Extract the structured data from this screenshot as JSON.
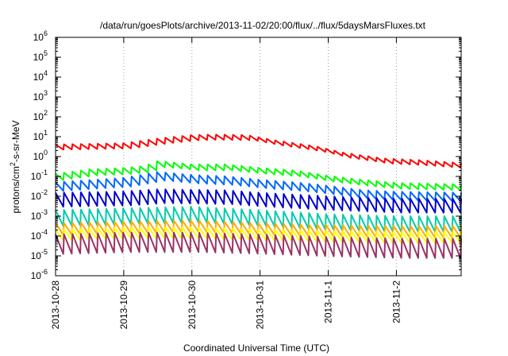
{
  "chart_data": {
    "type": "line",
    "title": "/data/run/goesPlots/archive/2013-11-02/20:00/flux/../flux/5daysMarsFluxes.txt",
    "xlabel": "Coordinated Universal Time (UTC)",
    "ylabel": {
      "base": "protons/cm",
      "sup": "2",
      "rest": "-s-sr-MeV"
    },
    "yscale": "log",
    "ylim": [
      1e-06,
      1000000.0
    ],
    "y_ticks": [
      {
        "value": 1e-06,
        "exp": "-6"
      },
      {
        "value": 1e-05,
        "exp": "-5"
      },
      {
        "value": 0.0001,
        "exp": "-4"
      },
      {
        "value": 0.001,
        "exp": "-3"
      },
      {
        "value": 0.01,
        "exp": "-2"
      },
      {
        "value": 0.1,
        "exp": "-1"
      },
      {
        "value": 1,
        "exp": "0"
      },
      {
        "value": 10,
        "exp": "1"
      },
      {
        "value": 100,
        "exp": "2"
      },
      {
        "value": 1000,
        "exp": "3"
      },
      {
        "value": 10000,
        "exp": "4"
      },
      {
        "value": 100000,
        "exp": "5"
      },
      {
        "value": 1000000,
        "exp": "6"
      }
    ],
    "x_ticks": [
      "2013-10-28",
      "2013-10-29",
      "2013-10-30",
      "2013-10-31",
      "2013-11-1",
      "2013-11-2"
    ],
    "xlim_days": [
      0,
      5.95
    ],
    "grid": "vertical-dotted",
    "legend": "none",
    "cycles": 48,
    "series": [
      {
        "color": "#ff0000",
        "levels": [
          [
            0,
            3.0
          ],
          [
            1.0,
            3.5
          ],
          [
            1.5,
            6.0
          ],
          [
            2.0,
            9.0
          ],
          [
            2.3,
            9.5
          ],
          [
            2.8,
            9.0
          ],
          [
            3.2,
            5.0
          ],
          [
            3.8,
            2.5
          ],
          [
            4.2,
            1.2
          ],
          [
            4.8,
            0.6
          ],
          [
            5.3,
            0.5
          ],
          [
            5.95,
            0.35
          ]
        ],
        "amp": 1.35,
        "dip_amp": 1.35
      },
      {
        "color": "#00ff00",
        "levels": [
          [
            0,
            0.1
          ],
          [
            0.5,
            0.17
          ],
          [
            1.0,
            0.2
          ],
          [
            1.3,
            0.25
          ],
          [
            1.5,
            0.45
          ],
          [
            2.0,
            0.3
          ],
          [
            2.5,
            0.3
          ],
          [
            3.0,
            0.2
          ],
          [
            3.5,
            0.15
          ],
          [
            4.0,
            0.08
          ],
          [
            4.5,
            0.05
          ],
          [
            5.0,
            0.035
          ],
          [
            5.95,
            0.03
          ]
        ],
        "amp": 1.35,
        "dip_amp": 1.5
      },
      {
        "color": "#0066ff",
        "levels": [
          [
            0,
            0.03
          ],
          [
            1.0,
            0.05
          ],
          [
            1.5,
            0.1
          ],
          [
            2.0,
            0.07
          ],
          [
            2.5,
            0.06
          ],
          [
            3.0,
            0.04
          ],
          [
            3.5,
            0.03
          ],
          [
            4.0,
            0.02
          ],
          [
            4.5,
            0.012
          ],
          [
            5.0,
            0.01
          ],
          [
            5.95,
            0.009
          ]
        ],
        "amp": 1.7,
        "dip_amp": 1.6
      },
      {
        "color": "#0000cc",
        "levels": [
          [
            0,
            0.006
          ],
          [
            1.0,
            0.007
          ],
          [
            1.5,
            0.009
          ],
          [
            2.5,
            0.008
          ],
          [
            3.0,
            0.006
          ],
          [
            4.0,
            0.004
          ],
          [
            5.0,
            0.003
          ],
          [
            5.95,
            0.003
          ]
        ],
        "amp": 2.5,
        "dip_amp": 2.0
      },
      {
        "color": "#00ccaa",
        "levels": [
          [
            0,
            0.0008
          ],
          [
            1.0,
            0.001
          ],
          [
            2.0,
            0.0012
          ],
          [
            3.0,
            0.0008
          ],
          [
            4.0,
            0.0005
          ],
          [
            5.0,
            0.0004
          ],
          [
            5.95,
            0.0004
          ]
        ],
        "amp": 2.5,
        "dip_amp": 2.5
      },
      {
        "color": "#ffaa00",
        "levels": [
          [
            0,
            0.00025
          ],
          [
            1.0,
            0.0003
          ],
          [
            2.0,
            0.00035
          ],
          [
            3.0,
            0.00025
          ],
          [
            4.0,
            0.0002
          ],
          [
            5.0,
            0.00018
          ],
          [
            5.95,
            0.00018
          ]
        ],
        "amp": 1.8,
        "dip_amp": 2.2
      },
      {
        "color": "#ffff00",
        "levels": [
          [
            0,
            0.00012
          ],
          [
            1.0,
            0.00015
          ],
          [
            2.0,
            0.00015
          ],
          [
            3.0,
            0.00012
          ],
          [
            4.0,
            0.0001
          ],
          [
            5.0,
            9e-05
          ],
          [
            5.95,
            9e-05
          ]
        ],
        "amp": 1.8,
        "dip_amp": 2.0
      },
      {
        "color": "#993366",
        "levels": [
          [
            0,
            4e-05
          ],
          [
            1.0,
            5e-05
          ],
          [
            2.0,
            5e-05
          ],
          [
            3.0,
            4e-05
          ],
          [
            4.0,
            3e-05
          ],
          [
            5.0,
            2.5e-05
          ],
          [
            5.95,
            2.5e-05
          ]
        ],
        "amp": 3.0,
        "dip_amp": 3.2
      }
    ]
  }
}
